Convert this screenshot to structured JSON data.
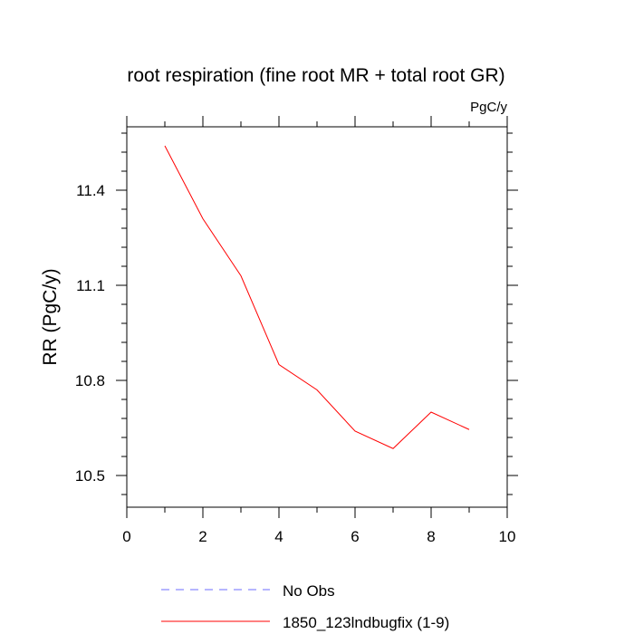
{
  "chart_data": {
    "type": "line",
    "title": "root respiration (fine root MR + total root GR)",
    "units_label": "PgC/y",
    "ylabel": "RR  (PgC/y)",
    "xlabel": "",
    "xlim": [
      0,
      10
    ],
    "ylim": [
      10.4,
      11.6
    ],
    "x_ticks": [
      0,
      2,
      4,
      6,
      8,
      10
    ],
    "x_tick_labels": [
      "0",
      "2",
      "4",
      "6",
      "8",
      "10"
    ],
    "x_minor_step": 1,
    "y_ticks": [
      10.5,
      10.8,
      11.1,
      11.4
    ],
    "y_tick_labels": [
      "10.5",
      "10.8",
      "11.1",
      "11.4"
    ],
    "y_minor_step": 0.06,
    "grid": false,
    "legend_position": "bottom-left",
    "series": [
      {
        "name": "No Obs",
        "color": "#6e6eff",
        "dash": "dashed",
        "x": [],
        "y": []
      },
      {
        "name": "1850_123lndbugfix (1-9)",
        "color": "#ff0000",
        "dash": "solid",
        "x": [
          1,
          2,
          3,
          4,
          5,
          6,
          7,
          8,
          9
        ],
        "y": [
          11.54,
          11.31,
          11.13,
          10.85,
          10.77,
          10.64,
          10.585,
          10.7,
          10.645
        ]
      }
    ]
  }
}
